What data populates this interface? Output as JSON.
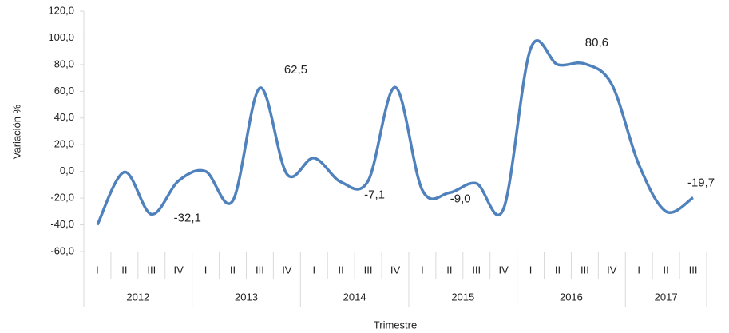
{
  "chart_data": {
    "type": "line",
    "y_axis_label": "Variación %",
    "x_axis_label": "Trimestre",
    "groups": [
      {
        "label": "2012",
        "categories": [
          "I",
          "II",
          "III",
          "IV"
        ]
      },
      {
        "label": "2013",
        "categories": [
          "I",
          "II",
          "III",
          "IV"
        ]
      },
      {
        "label": "2014",
        "categories": [
          "I",
          "II",
          "III",
          "IV"
        ]
      },
      {
        "label": "2015",
        "categories": [
          "I",
          "II",
          "III",
          "IV"
        ]
      },
      {
        "label": "2016",
        "categories": [
          "I",
          "II",
          "III",
          "IV"
        ]
      },
      {
        "label": "2017",
        "categories": [
          "I",
          "II",
          "III"
        ]
      }
    ],
    "series": [
      {
        "name": "Variación %",
        "color": "#4f81bd",
        "values": [
          -40,
          -0.5,
          -32.1,
          -7,
          0,
          -22,
          62.5,
          -2,
          10,
          -8,
          -7.1,
          63,
          -14,
          -16,
          -9.0,
          -28,
          92,
          80,
          80.6,
          65,
          5,
          -30,
          -19.7
        ],
        "value_labels": [
          null,
          null,
          "-32,1",
          null,
          null,
          null,
          "62,5",
          null,
          null,
          null,
          "-7,1",
          null,
          null,
          null,
          "-9,0",
          null,
          null,
          null,
          "80,6",
          null,
          null,
          null,
          "-19,7"
        ]
      }
    ],
    "ylim": [
      -60,
      120
    ],
    "yticks": [
      {
        "value": -60,
        "label": "-60,0"
      },
      {
        "value": -40,
        "label": "-40,0"
      },
      {
        "value": -20,
        "label": "-20,0"
      },
      {
        "value": 0,
        "label": "0,0"
      },
      {
        "value": 20,
        "label": "20,0"
      },
      {
        "value": 40,
        "label": "40,0"
      },
      {
        "value": 60,
        "label": "60,0"
      },
      {
        "value": 80,
        "label": "80,0"
      },
      {
        "value": 100,
        "label": "100,0"
      },
      {
        "value": 120,
        "label": "120,0"
      }
    ]
  }
}
